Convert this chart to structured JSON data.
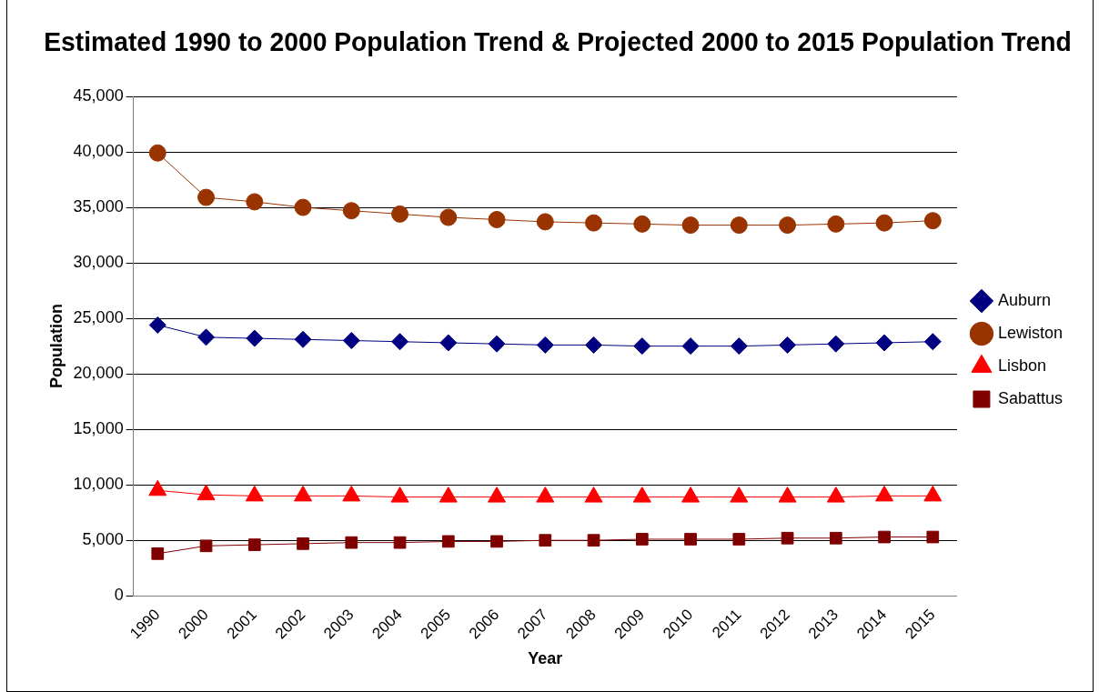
{
  "chart_data": {
    "type": "line",
    "title": "Estimated 1990 to 2000 Population Trend & Projected 2000 to 2015 Population Trend",
    "xlabel": "Year",
    "ylabel": "Population",
    "categories": [
      "1990",
      "2000",
      "2001",
      "2002",
      "2003",
      "2004",
      "2005",
      "2006",
      "2007",
      "2008",
      "2009",
      "2010",
      "2011",
      "2012",
      "2013",
      "2014",
      "2015"
    ],
    "series": [
      {
        "name": "Auburn",
        "color": "#000080",
        "marker": "diamond",
        "values": [
          24400,
          23300,
          23200,
          23100,
          23000,
          22900,
          22800,
          22700,
          22600,
          22600,
          22500,
          22500,
          22500,
          22600,
          22700,
          22800,
          22900
        ]
      },
      {
        "name": "Lewiston",
        "color": "#993300",
        "marker": "circle",
        "values": [
          39900,
          35900,
          35500,
          35000,
          34700,
          34400,
          34100,
          33900,
          33700,
          33600,
          33500,
          33400,
          33400,
          33400,
          33500,
          33600,
          33800
        ]
      },
      {
        "name": "Lisbon",
        "color": "#ff0000",
        "marker": "triangle",
        "values": [
          9500,
          9100,
          9000,
          9000,
          9000,
          8900,
          8900,
          8900,
          8900,
          8900,
          8900,
          8900,
          8900,
          8900,
          8900,
          9000,
          9000
        ]
      },
      {
        "name": "Sabattus",
        "color": "#800000",
        "marker": "square",
        "values": [
          3800,
          4500,
          4600,
          4700,
          4800,
          4800,
          4900,
          4900,
          5000,
          5000,
          5100,
          5100,
          5100,
          5200,
          5200,
          5300,
          5300
        ]
      }
    ],
    "ylim": [
      0,
      45000
    ],
    "yticks": [
      {
        "value": 0,
        "label": "0"
      },
      {
        "value": 5000,
        "label": "5,000"
      },
      {
        "value": 10000,
        "label": "10,000"
      },
      {
        "value": 15000,
        "label": "15,000"
      },
      {
        "value": 20000,
        "label": "20,000"
      },
      {
        "value": 25000,
        "label": "25,000"
      },
      {
        "value": 30000,
        "label": "30,000"
      },
      {
        "value": 35000,
        "label": "35,000"
      },
      {
        "value": 40000,
        "label": "40,000"
      },
      {
        "value": 45000,
        "label": "45,000"
      }
    ],
    "grid": "y",
    "legend": "right",
    "line_style": "solid"
  }
}
